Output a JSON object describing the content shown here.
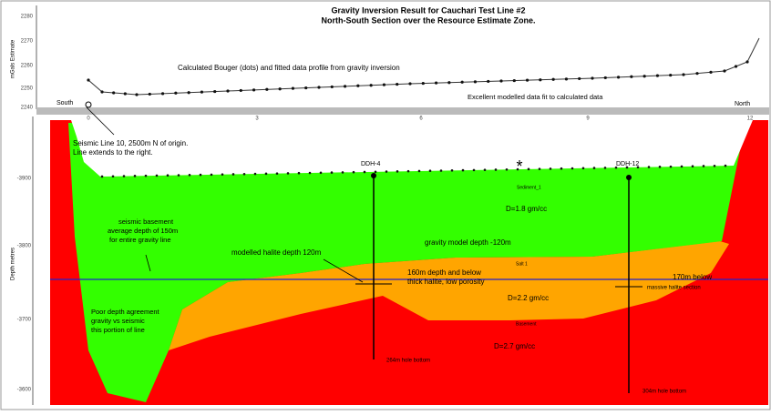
{
  "header": {
    "title": "Gravity Inversion Result for Cauchari Test Line #2",
    "subtitle": "North-South Section over the Resource Estimate Zone."
  },
  "top_panel": {
    "y_label": "mGals Estimate",
    "y_ticks": [
      "2280",
      "2270",
      "2260",
      "2250",
      "2240"
    ],
    "profile_label": "Calculated Bouger (dots) and fitted data profile from gravity inversion",
    "south": "South",
    "north": "North",
    "fit_note": "Excellent modelled data fit to calculated data"
  },
  "section": {
    "x_ticks": [
      "0",
      "3",
      "6",
      "9",
      "12"
    ],
    "y_label": "Depth metres",
    "y_ticks": [
      "-3900",
      "-3800",
      "-3700",
      "-3600"
    ],
    "seismic_note": [
      "Seismic Line 10, 2500m N of origin.",
      "Line extends to the right."
    ],
    "holes": [
      "DDH-4",
      "DDH-12"
    ],
    "star": "*",
    "sediment": {
      "name": "Sediment_1",
      "density": "D=1.8 gm/cc"
    },
    "basement_note": [
      "seismic basement",
      "average depth of 150m",
      "for entire gravity line"
    ],
    "halite_depth": "modelled halite depth 120m",
    "gravity_depth": "gravity model depth -120m",
    "thick_halite": [
      "160m depth and below",
      "thick halite, low porosity"
    ],
    "salt": {
      "name": "Salt 1",
      "density": "D=2.2 gm/cc"
    },
    "massive": [
      "170m below",
      "massive halite section"
    ],
    "poor_agreement": [
      "Poor depth agreement",
      "gravity vs seismic",
      "this portion of line"
    ],
    "basement": {
      "name": "Basement",
      "density": "D=2.7 gm/cc"
    },
    "hole_bottoms": [
      "264m hole bottom",
      "304m hole bottom"
    ]
  }
}
